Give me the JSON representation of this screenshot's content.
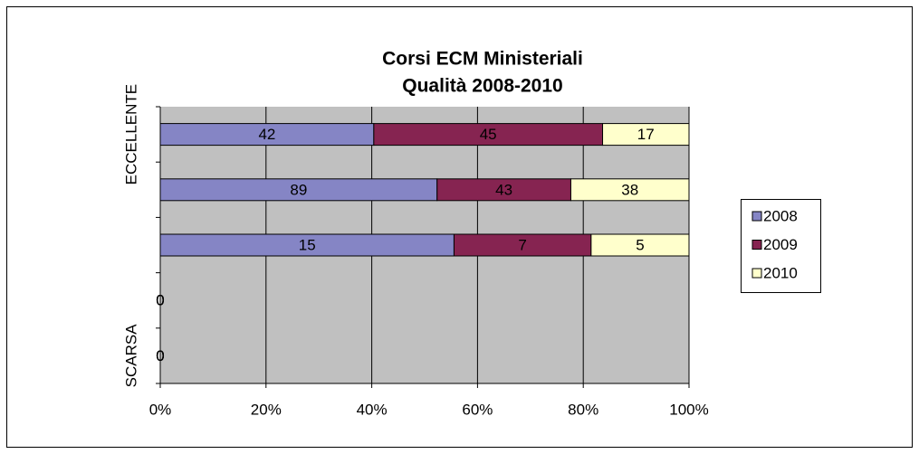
{
  "chart_data": {
    "type": "bar",
    "orientation": "horizontal",
    "stacking": "percent",
    "title": "Corsi ECM Ministeriali",
    "subtitle": "Qualità 2008-2010",
    "categories": [
      "ECCELLENTE",
      null,
      null,
      null,
      "SCARSA"
    ],
    "series": [
      {
        "name": "2008",
        "color": "#8585c5",
        "values": [
          42,
          89,
          15,
          0,
          0
        ]
      },
      {
        "name": "2009",
        "color": "#862451",
        "values": [
          45,
          43,
          7,
          0,
          0
        ]
      },
      {
        "name": "2010",
        "color": "#ffffcc",
        "values": [
          17,
          38,
          5,
          0,
          0
        ]
      }
    ],
    "xlim": [
      0,
      100
    ],
    "xticks": [
      {
        "value": 0,
        "label": "0%"
      },
      {
        "value": 20,
        "label": "20%"
      },
      {
        "value": 40,
        "label": "40%"
      },
      {
        "value": 60,
        "label": "60%"
      },
      {
        "value": 80,
        "label": "80%"
      },
      {
        "value": 100,
        "label": "100%"
      }
    ],
    "grid": true,
    "legend": "right",
    "background": "#c0c0c0"
  }
}
